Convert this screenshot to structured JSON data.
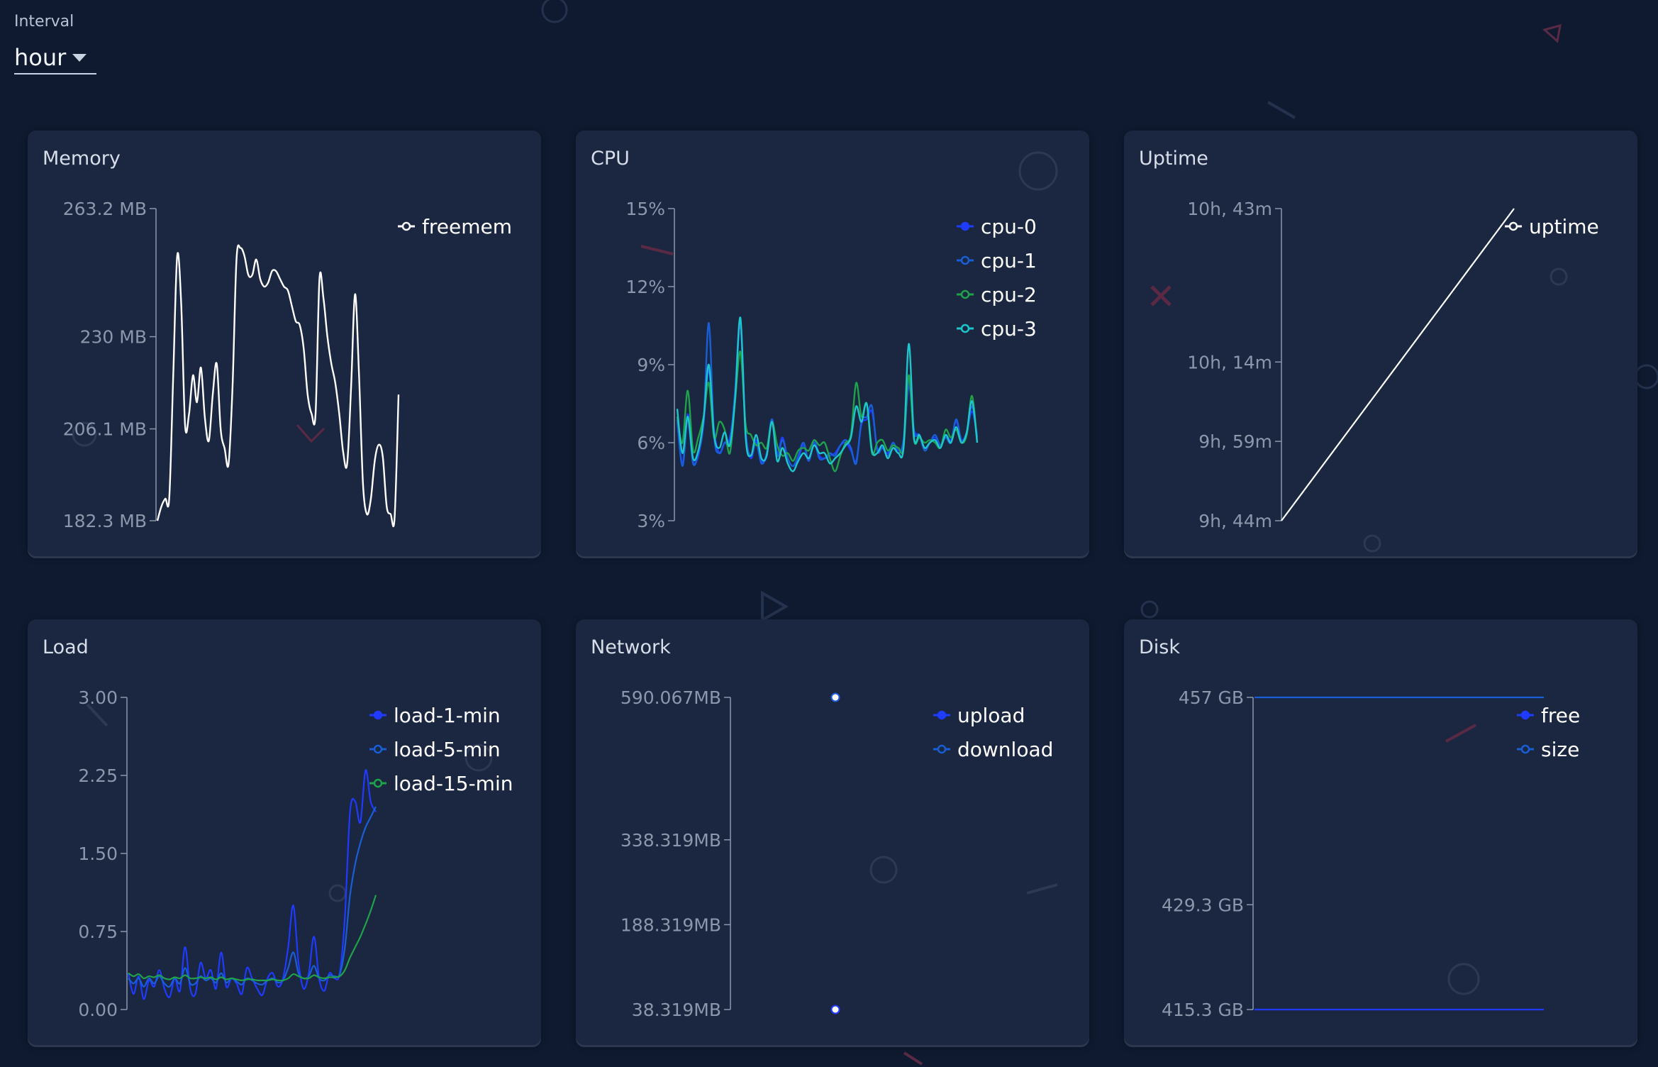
{
  "interval": {
    "label": "Interval",
    "value": "hour"
  },
  "chart_data": [
    {
      "id": "memory",
      "type": "line",
      "title": "Memory",
      "yticks": [
        "263.2 MB",
        "230 MB",
        "206.1 MB",
        "182.3 MB"
      ],
      "ytick_values": [
        263.2,
        230,
        206.1,
        182.3
      ],
      "ylim": [
        182.3,
        263.2
      ],
      "series": [
        {
          "name": "freemem",
          "color": "#ffffff",
          "values": [
            182.3,
            186,
            188,
            188.3,
            220,
            251,
            239,
            207,
            210,
            220,
            213,
            222,
            209,
            203,
            215,
            223,
            206,
            201,
            197,
            217,
            250,
            253,
            251,
            246,
            246,
            250,
            245,
            243,
            244,
            247,
            247,
            245,
            243,
            242,
            238,
            234,
            233,
            227,
            215,
            210,
            210,
            245,
            240,
            230,
            223,
            218,
            210,
            200,
            197,
            217,
            241,
            220,
            192,
            184,
            188,
            198,
            202,
            199,
            186,
            184,
            183,
            215
          ]
        }
      ]
    },
    {
      "id": "cpu",
      "type": "line",
      "title": "CPU",
      "yticks": [
        "15%",
        "12%",
        "9%",
        "6%",
        "3%"
      ],
      "ytick_values": [
        15,
        12,
        9,
        6,
        3
      ],
      "ylim": [
        3,
        15
      ],
      "series": [
        {
          "name": "cpu-0",
          "color": "#1f3bff",
          "values": [
            6.8,
            5.2,
            7.1,
            5.3,
            5.5,
            6.7,
            8.8,
            6.5,
            5.6,
            6.0,
            6.2,
            7.8,
            10.6,
            6.5,
            5.4,
            6.1,
            5.3,
            5.5,
            6.9,
            5.6,
            6.2,
            5.4,
            5.1,
            5.4,
            5.9,
            5.3,
            6.1,
            5.5,
            5.4,
            5.5,
            5.6,
            5.9,
            6.0,
            5.7,
            5.3,
            6.7,
            6.9,
            7.2,
            5.8,
            5.8,
            5.6,
            6.0,
            5.7,
            5.9,
            8.2,
            6.5,
            6.3,
            5.8,
            6.0,
            6.2,
            5.9,
            6.3,
            6.1,
            6.8,
            6.1,
            6.4,
            7.2,
            6.3
          ]
        },
        {
          "name": "cpu-1",
          "color": "#1a5ed6",
          "values": [
            6.9,
            5.1,
            6.9,
            5.2,
            5.6,
            6.8,
            10.6,
            6.3,
            5.6,
            6.0,
            6.0,
            8.0,
            10.7,
            6.4,
            5.5,
            6.0,
            5.2,
            5.6,
            6.9,
            5.5,
            6.1,
            5.4,
            5.1,
            5.5,
            6.0,
            5.3,
            6.0,
            5.4,
            5.4,
            5.6,
            5.5,
            5.9,
            6.1,
            5.8,
            5.2,
            6.8,
            7.0,
            7.4,
            5.7,
            5.8,
            5.5,
            6.0,
            5.6,
            6.1,
            8.4,
            6.4,
            6.3,
            5.7,
            6.0,
            6.3,
            5.9,
            6.2,
            6.0,
            6.9,
            6.1,
            6.3,
            7.4,
            6.2
          ]
        },
        {
          "name": "cpu-2",
          "color": "#1fa24a",
          "values": [
            7.0,
            6.0,
            8.0,
            5.7,
            6.2,
            7.0,
            8.3,
            6.2,
            6.8,
            6.5,
            5.6,
            7.6,
            9.5,
            6.7,
            6.3,
            5.9,
            6.0,
            5.8,
            6.8,
            5.9,
            5.5,
            5.6,
            5.3,
            5.7,
            5.8,
            5.7,
            6.1,
            5.9,
            6.0,
            5.4,
            4.9,
            5.5,
            6.0,
            6.3,
            8.3,
            7.0,
            7.5,
            5.6,
            6.0,
            6.1,
            5.7,
            5.9,
            5.8,
            5.8,
            8.6,
            6.1,
            6.2,
            6.0,
            6.1,
            6.0,
            5.8,
            6.5,
            6.2,
            6.5,
            6.0,
            6.3,
            7.8,
            6.0
          ]
        },
        {
          "name": "cpu-3",
          "color": "#1dc6cc",
          "values": [
            7.3,
            5.6,
            7.0,
            5.4,
            5.7,
            6.9,
            9.0,
            6.3,
            5.8,
            6.4,
            5.9,
            7.7,
            10.8,
            6.2,
            5.5,
            6.3,
            5.4,
            5.5,
            6.8,
            5.3,
            5.8,
            5.2,
            4.9,
            5.3,
            5.6,
            5.4,
            5.9,
            5.6,
            5.6,
            5.2,
            5.4,
            5.6,
            5.9,
            6.2,
            7.4,
            6.8,
            7.5,
            5.7,
            5.6,
            5.9,
            5.4,
            5.8,
            5.6,
            5.8,
            9.8,
            6.2,
            6.3,
            5.8,
            6.0,
            6.1,
            5.8,
            6.3,
            6.0,
            6.6,
            6.0,
            6.4,
            7.6,
            6.0
          ]
        }
      ]
    },
    {
      "id": "uptime",
      "type": "line",
      "title": "Uptime",
      "yticks": [
        "10h, 43m",
        "10h, 14m",
        "9h, 59m",
        "9h, 44m"
      ],
      "ytick_values": [
        643,
        614,
        599,
        584
      ],
      "ylim": [
        584,
        643
      ],
      "series": [
        {
          "name": "uptime",
          "color": "#ffffff",
          "values": [
            584,
            643
          ]
        }
      ]
    },
    {
      "id": "load",
      "type": "line",
      "title": "Load",
      "yticks": [
        "3.00",
        "2.25",
        "1.50",
        "0.75",
        "0.00"
      ],
      "ytick_values": [
        3,
        2.25,
        1.5,
        0.75,
        0
      ],
      "ylim": [
        0,
        3
      ],
      "series": [
        {
          "name": "load-1-min",
          "color": "#1f3bff",
          "values": [
            0.35,
            0.15,
            0.32,
            0.1,
            0.28,
            0.22,
            0.38,
            0.2,
            0.12,
            0.3,
            0.18,
            0.6,
            0.2,
            0.15,
            0.45,
            0.3,
            0.38,
            0.2,
            0.55,
            0.22,
            0.3,
            0.25,
            0.15,
            0.4,
            0.3,
            0.2,
            0.14,
            0.3,
            0.35,
            0.22,
            0.3,
            0.6,
            1.0,
            0.45,
            0.2,
            0.35,
            0.7,
            0.3,
            0.18,
            0.35,
            0.3,
            0.35,
            0.9,
            1.9,
            2.0,
            1.8,
            2.3,
            2.0,
            1.9
          ]
        },
        {
          "name": "load-5-min",
          "color": "#1a5ed6",
          "values": [
            0.3,
            0.25,
            0.3,
            0.22,
            0.3,
            0.25,
            0.32,
            0.25,
            0.22,
            0.3,
            0.25,
            0.4,
            0.25,
            0.25,
            0.32,
            0.28,
            0.3,
            0.26,
            0.35,
            0.26,
            0.3,
            0.27,
            0.24,
            0.3,
            0.28,
            0.25,
            0.24,
            0.28,
            0.3,
            0.26,
            0.28,
            0.4,
            0.55,
            0.35,
            0.3,
            0.32,
            0.42,
            0.3,
            0.28,
            0.33,
            0.32,
            0.34,
            0.6,
            1.1,
            1.4,
            1.6,
            1.75,
            1.85,
            1.95
          ]
        },
        {
          "name": "load-15-min",
          "color": "#1fa24a",
          "values": [
            0.35,
            0.32,
            0.34,
            0.3,
            0.32,
            0.31,
            0.33,
            0.3,
            0.29,
            0.31,
            0.3,
            0.33,
            0.3,
            0.3,
            0.31,
            0.3,
            0.31,
            0.29,
            0.31,
            0.29,
            0.3,
            0.29,
            0.28,
            0.29,
            0.29,
            0.28,
            0.28,
            0.28,
            0.29,
            0.28,
            0.28,
            0.3,
            0.34,
            0.32,
            0.3,
            0.3,
            0.33,
            0.31,
            0.3,
            0.31,
            0.31,
            0.32,
            0.38,
            0.5,
            0.6,
            0.7,
            0.82,
            0.95,
            1.1
          ]
        }
      ]
    },
    {
      "id": "network",
      "type": "scatter",
      "title": "Network",
      "yticks": [
        "590.067MB",
        "338.319MB",
        "188.319MB",
        "38.319MB"
      ],
      "ytick_values": [
        590.067,
        338.319,
        188.319,
        38.319
      ],
      "ylim": [
        38.319,
        590.067
      ],
      "series": [
        {
          "name": "upload",
          "color": "#1f3bff",
          "values": [
            38.319
          ]
        },
        {
          "name": "download",
          "color": "#1a5ed6",
          "values": [
            590.067
          ]
        }
      ]
    },
    {
      "id": "disk",
      "type": "line",
      "title": "Disk",
      "yticks": [
        "457 GB",
        "429.3 GB",
        "415.3 GB"
      ],
      "ytick_values": [
        457,
        429.3,
        415.3
      ],
      "ylim": [
        415.3,
        457
      ],
      "series": [
        {
          "name": "free",
          "color": "#1f3bff",
          "values": [
            415.3,
            415.3
          ]
        },
        {
          "name": "size",
          "color": "#1a5ed6",
          "values": [
            457,
            457
          ]
        }
      ]
    }
  ]
}
